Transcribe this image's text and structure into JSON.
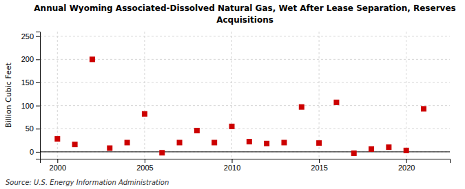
{
  "chart_data": {
    "type": "scatter",
    "title": "Annual Wyoming Associated-Dissolved Natural Gas, Wet After Lease Separation, Reserves",
    "subtitle": "Acquisitions",
    "ylabel": "Billion Cubic Feet",
    "source": "Source: U.S. Energy Information Administration",
    "x": [
      2000,
      2001,
      2002,
      2003,
      2004,
      2005,
      2006,
      2007,
      2008,
      2009,
      2010,
      2011,
      2012,
      2013,
      2014,
      2015,
      2016,
      2017,
      2018,
      2019,
      2020,
      2021
    ],
    "values": [
      28,
      16,
      200,
      8,
      20,
      82,
      -2,
      20,
      46,
      20,
      55,
      22,
      18,
      20,
      97,
      19,
      107,
      -3,
      6,
      10,
      3,
      93
    ],
    "color": "#CC0000",
    "marker": "square",
    "xlim": [
      1999,
      2022.5
    ],
    "ylim": [
      -15,
      260
    ],
    "xticks": [
      2000,
      2005,
      2010,
      2015,
      2020
    ],
    "yticks": [
      0,
      50,
      100,
      150,
      200,
      250
    ],
    "grid": true
  }
}
